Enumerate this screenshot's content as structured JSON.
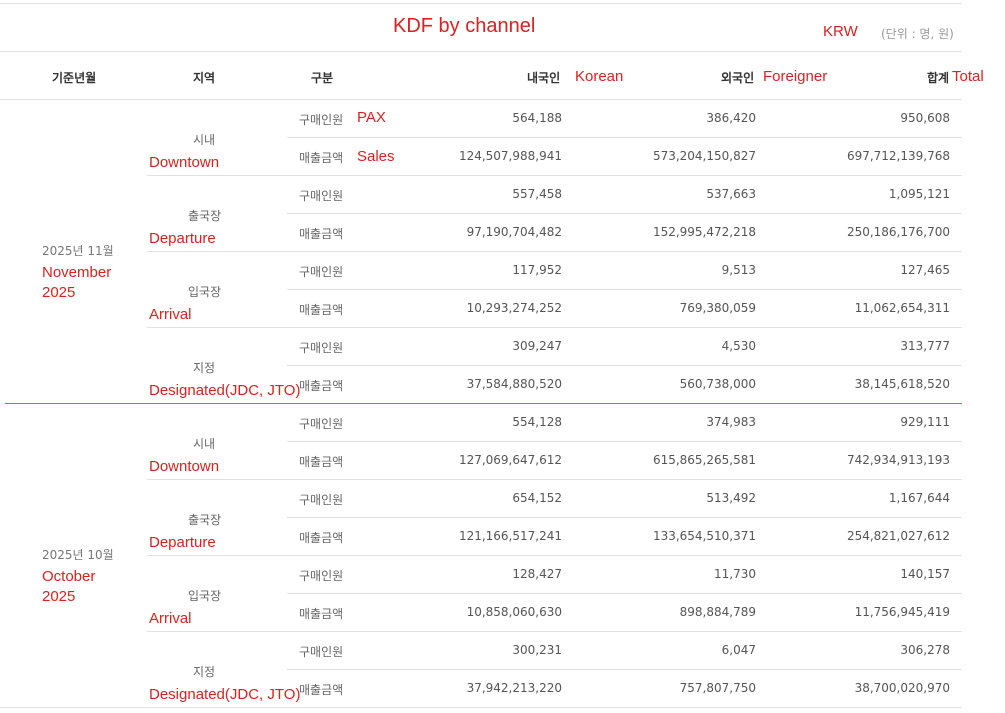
{
  "title": "KDF by channel",
  "unit_currency": "KRW",
  "unit_note": "(단위 : 명, 원)",
  "headers": {
    "date": "기준년월",
    "region": "지역",
    "category": "구분",
    "korean": "내국인",
    "korean_en": "Korean",
    "foreign": "외국인",
    "foreign_en": "Foreigner",
    "total": "합계",
    "total_en": "Total"
  },
  "annot": {
    "pax": "PAX",
    "sales": "Sales"
  },
  "rows": {
    "pax": "구매인원",
    "sales": "매출금액"
  },
  "blocks": [
    {
      "date": "2025년 11월",
      "date_en_1": "November",
      "date_en_2": "2025",
      "regions": [
        {
          "ko": "시내",
          "en": "Downtown",
          "pax": [
            "564,188",
            "386,420",
            "950,608"
          ],
          "sales": [
            "124,507,988,941",
            "573,204,150,827",
            "697,712,139,768"
          ]
        },
        {
          "ko": "출국장",
          "en": "Departure",
          "pax": [
            "557,458",
            "537,663",
            "1,095,121"
          ],
          "sales": [
            "97,190,704,482",
            "152,995,472,218",
            "250,186,176,700"
          ]
        },
        {
          "ko": "입국장",
          "en": "Arrival",
          "pax": [
            "117,952",
            "9,513",
            "127,465"
          ],
          "sales": [
            "10,293,274,252",
            "769,380,059",
            "11,062,654,311"
          ]
        },
        {
          "ko": "지정",
          "en": "Designated(JDC, JTO)",
          "pax": [
            "309,247",
            "4,530",
            "313,777"
          ],
          "sales": [
            "37,584,880,520",
            "560,738,000",
            "38,145,618,520"
          ]
        }
      ]
    },
    {
      "date": "2025년 10월",
      "date_en_1": "October",
      "date_en_2": "2025",
      "regions": [
        {
          "ko": "시내",
          "en": "Downtown",
          "pax": [
            "554,128",
            "374,983",
            "929,111"
          ],
          "sales": [
            "127,069,647,612",
            "615,865,265,581",
            "742,934,913,193"
          ]
        },
        {
          "ko": "출국장",
          "en": "Departure",
          "pax": [
            "654,152",
            "513,492",
            "1,167,644"
          ],
          "sales": [
            "121,166,517,241",
            "133,654,510,371",
            "254,821,027,612"
          ]
        },
        {
          "ko": "입국장",
          "en": "Arrival",
          "pax": [
            "128,427",
            "11,730",
            "140,157"
          ],
          "sales": [
            "10,858,060,630",
            "898,884,789",
            "11,756,945,419"
          ]
        },
        {
          "ko": "지정",
          "en": "Designated(JDC, JTO)",
          "pax": [
            "300,231",
            "6,047",
            "306,278"
          ],
          "sales": [
            "37,942,213,220",
            "757,807,750",
            "38,700,020,970"
          ]
        }
      ]
    }
  ],
  "colors": {
    "annotation": "#e01f1f",
    "divider": "#e05a5a",
    "border": "#e2e2e2"
  }
}
